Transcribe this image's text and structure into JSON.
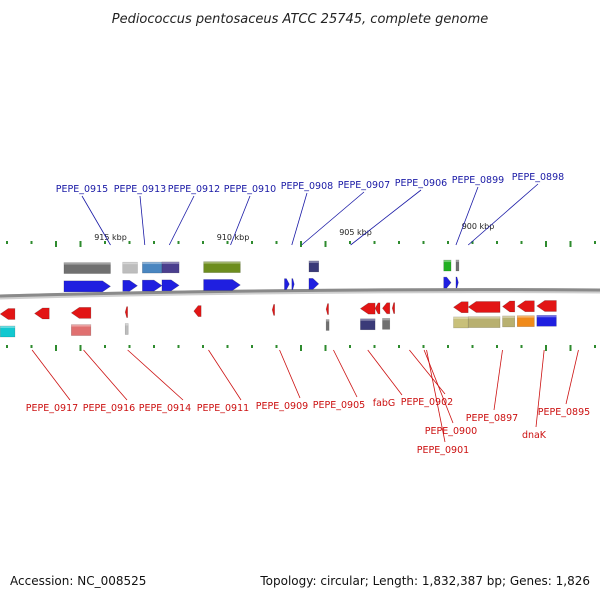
{
  "title": "Pediococcus pentosaceus ATCC 25745, complete genome",
  "accession": "Accession: NC_008525",
  "summary": "Topology: circular; Length: 1,832,387 bp; Genes: 1,826",
  "colors": {
    "forward_cds": "#1f1fe0",
    "reverse_cds": "#e21515",
    "top_label": "#1a1aa6",
    "bottom_label": "#cc1111",
    "backbone": "#8a8a8a",
    "tick": "#2e8b2e"
  },
  "scale_labels": [
    {
      "text": "915 kbp",
      "kbp": 915
    },
    {
      "text": "910 kbp",
      "kbp": 910
    },
    {
      "text": "905 kbp",
      "kbp": 905
    },
    {
      "text": "900 kbp",
      "kbp": 900
    }
  ],
  "forward_labels": [
    {
      "text": "PEPE_0915",
      "kbp": 915.0
    },
    {
      "text": "PEPE_0913",
      "kbp": 913.6
    },
    {
      "text": "PEPE_0912",
      "kbp": 912.6
    },
    {
      "text": "PEPE_0910",
      "kbp": 910.1
    },
    {
      "text": "PEPE_0908",
      "kbp": 907.6
    },
    {
      "text": "PEPE_0907",
      "kbp": 907.2
    },
    {
      "text": "PEPE_0906",
      "kbp": 905.2
    },
    {
      "text": "PEPE_0899",
      "kbp": 900.9
    },
    {
      "text": "PEPE_0898",
      "kbp": 900.4
    }
  ],
  "reverse_labels": [
    {
      "text": "PEPE_0917",
      "kbp": 918.2
    },
    {
      "text": "PEPE_0916",
      "kbp": 916.1
    },
    {
      "text": "PEPE_0914",
      "kbp": 914.3
    },
    {
      "text": "PEPE_0911",
      "kbp": 911.0
    },
    {
      "text": "PEPE_0909",
      "kbp": 908.1
    },
    {
      "text": "PEPE_0905",
      "kbp": 905.9
    },
    {
      "text": "fabG",
      "kbp": 904.5
    },
    {
      "text": "PEPE_0902",
      "kbp": 902.8
    },
    {
      "text": "PEPE_0900",
      "kbp": 902.2
    },
    {
      "text": "PEPE_0901",
      "kbp": 902.1
    },
    {
      "text": "PEPE_0897",
      "kbp": 899.0
    },
    {
      "text": "dnaK",
      "kbp": 897.3
    },
    {
      "text": "PEPE_0895",
      "kbp": 895.9
    }
  ],
  "forward_genes": [
    {
      "start": 915.0,
      "end": 916.9,
      "color": "#1f1fe0",
      "feature": "#707070"
    },
    {
      "start": 913.9,
      "end": 914.5,
      "color": "#1f1fe0",
      "feature": "#bdbdbd"
    },
    {
      "start": 912.9,
      "end": 913.7,
      "color": "#1f1fe0",
      "feature": "#4a86c0"
    },
    {
      "start": 912.2,
      "end": 912.9,
      "color": "#1f1fe0",
      "feature": "#4b3f8e"
    },
    {
      "start": 909.7,
      "end": 911.2,
      "color": "#1f1fe0",
      "feature": "#6d8d1e"
    },
    {
      "start": 907.7,
      "end": 907.9,
      "color": "#1f1fe0",
      "feature": null
    },
    {
      "start": 907.5,
      "end": 907.6,
      "color": "#1f1fe0",
      "feature": null
    },
    {
      "start": 906.5,
      "end": 906.9,
      "color": "#1f1fe0",
      "feature": "#3a3a78"
    },
    {
      "start": 901.1,
      "end": 901.4,
      "color": "#1f1fe0",
      "feature": "#22b022"
    },
    {
      "start": 900.8,
      "end": 900.9,
      "color": "#1f1fe0",
      "feature": "#707070"
    }
  ],
  "reverse_genes": [
    {
      "start": 918.9,
      "end": 919.5,
      "color": "#e21515",
      "feature": "#12c8d0"
    },
    {
      "start": 917.5,
      "end": 918.1,
      "color": "#e21515",
      "feature": null
    },
    {
      "start": 915.8,
      "end": 916.6,
      "color": "#e21515",
      "feature": "#e07070"
    },
    {
      "start": 914.3,
      "end": 914.4,
      "color": "#e21515",
      "feature": "#bdbdbd"
    },
    {
      "start": 911.3,
      "end": 911.6,
      "color": "#e21515",
      "feature": null
    },
    {
      "start": 908.3,
      "end": 908.4,
      "color": "#e21515",
      "feature": null
    },
    {
      "start": 906.1,
      "end": 906.2,
      "color": "#e21515",
      "feature": "#707070"
    },
    {
      "start": 904.2,
      "end": 904.8,
      "color": "#e21515",
      "feature": "#3a3a78"
    },
    {
      "start": 904.0,
      "end": 904.2,
      "color": "#e21515",
      "feature": null
    },
    {
      "start": 903.6,
      "end": 903.9,
      "color": "#e21515",
      "feature": "#707070"
    },
    {
      "start": 903.4,
      "end": 903.5,
      "color": "#e21515",
      "feature": null
    },
    {
      "start": 900.4,
      "end": 901.0,
      "color": "#e21515",
      "feature": "#c8c07a"
    },
    {
      "start": 899.1,
      "end": 900.4,
      "color": "#e21515",
      "feature": "#b8b070"
    },
    {
      "start": 898.5,
      "end": 899.0,
      "color": "#e21515",
      "feature": "#b8b070"
    },
    {
      "start": 897.7,
      "end": 898.4,
      "color": "#e21515",
      "feature": "#f08a1a"
    },
    {
      "start": 896.8,
      "end": 897.6,
      "color": "#e21515",
      "feature": "#1f1fe0"
    }
  ]
}
